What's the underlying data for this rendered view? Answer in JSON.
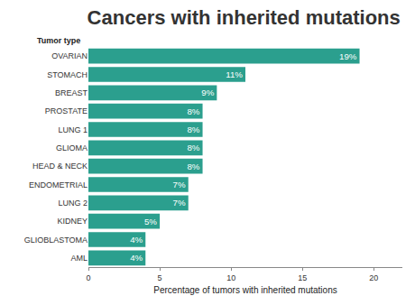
{
  "chart_data": {
    "type": "bar",
    "orientation": "horizontal",
    "title": "Cancers with inherited mutations",
    "ylabel": "Tumor type",
    "xlabel": "Percentage of tumors with inherited mutations",
    "categories": [
      "OVARIAN",
      "STOMACH",
      "BREAST",
      "PROSTATE",
      "LUNG 1",
      "GLIOMA",
      "HEAD & NECK",
      "ENDOMETRIAL",
      "LUNG 2",
      "KIDNEY",
      "GLIOBLASTOMA",
      "AML"
    ],
    "values": [
      19,
      11,
      9,
      8,
      8,
      8,
      8,
      7,
      7,
      5,
      4,
      4
    ],
    "value_labels": [
      "19%",
      "11%",
      "9%",
      "8%",
      "8%",
      "8%",
      "8%",
      "7%",
      "7%",
      "5%",
      "4%",
      "4%"
    ],
    "data_labels": true,
    "color": "#2b9f8e",
    "xlim": [
      0,
      22
    ],
    "xticks": [
      0,
      5,
      10,
      15,
      20
    ],
    "grid": false
  }
}
